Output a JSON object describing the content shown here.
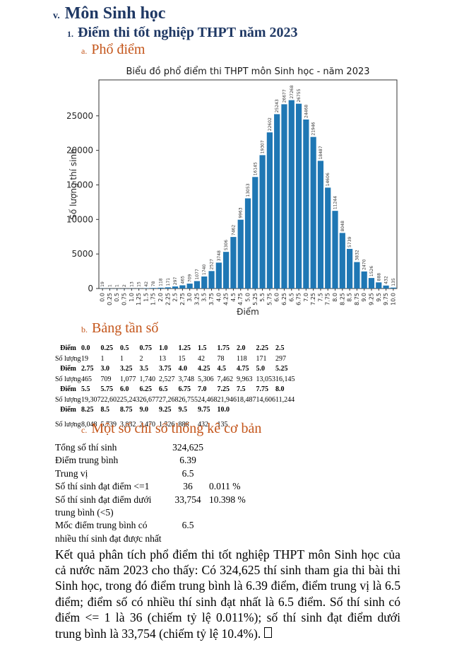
{
  "page": {
    "title_prefix": "v.",
    "title": "Môn Sinh học",
    "subtitle_prefix": "1.",
    "subtitle": "Điểm thi tốt nghiệp THPT năm 2023",
    "section_a_prefix": "a.",
    "section_a": "Phổ điểm",
    "section_b_prefix": "b.",
    "section_b": "Bảng tần số",
    "section_c_prefix": "c.",
    "section_c": "Một số chỉ số thống kê cơ bản"
  },
  "chart_data": {
    "type": "bar",
    "title": "Biểu đồ phổ điểm thi THPT môn Sinh học - năm 2023",
    "xlabel": "Điểm",
    "ylabel": "Số lượng thí sinh",
    "categories": [
      "0.0",
      "0.25",
      "0.5",
      "0.75",
      "1.0",
      "1.25",
      "1.5",
      "1.75",
      "2.0",
      "2.25",
      "2.5",
      "2.75",
      "3.0",
      "3.25",
      "3.5",
      "3.75",
      "4.0",
      "4.25",
      "4.5",
      "4.75",
      "5.0",
      "5.25",
      "5.5",
      "5.75",
      "6.0",
      "6.25",
      "6.5",
      "6.75",
      "7.0",
      "7.25",
      "7.5",
      "7.75",
      "8.0",
      "8.25",
      "8.5",
      "8.75",
      "9.0",
      "9.25",
      "9.5",
      "9.75",
      "10.0"
    ],
    "values": [
      19,
      1,
      1,
      2,
      13,
      15,
      42,
      78,
      118,
      171,
      297,
      465,
      709,
      1077,
      1740,
      2527,
      3748,
      5306,
      7462,
      9963,
      13053,
      16145,
      19307,
      22602,
      25243,
      26677,
      27268,
      26755,
      24468,
      21946,
      18487,
      14606,
      11244,
      8048,
      5739,
      3832,
      2470,
      1526,
      888,
      432,
      135
    ],
    "yticks": [
      0,
      5000,
      10000,
      15000,
      20000,
      25000
    ],
    "ylim": [
      0,
      30200
    ],
    "bar_color": "#1f77b4",
    "grid": false,
    "legend": "none",
    "value_labels_rotated": true
  },
  "freq_table": {
    "diem_label": "Điểm",
    "soluong_label": "Số lượng",
    "groups": [
      {
        "diem": [
          "0.0",
          "0.25",
          "0.5",
          "0.75",
          "1.0",
          "1.25",
          "1.5",
          "1.75",
          "2.0",
          "2.25",
          "2.5"
        ],
        "soluong": [
          "19",
          "1",
          "1",
          "2",
          "13",
          "15",
          "42",
          "78",
          "118",
          "171",
          "297"
        ]
      },
      {
        "diem": [
          "2.75",
          "3.0",
          "3.25",
          "3.5",
          "3.75",
          "4.0",
          "4.25",
          "4.5",
          "4.75",
          "5.0",
          "5.25"
        ],
        "soluong": [
          "465",
          "709",
          "1,077",
          "1,740",
          "2,527",
          "3,748",
          "5,306",
          "7,462",
          "9,963",
          "13,053",
          "16,145"
        ]
      },
      {
        "diem": [
          "5.5",
          "5.75",
          "6.0",
          "6.25",
          "6.5",
          "6.75",
          "7.0",
          "7.25",
          "7.5",
          "7.75",
          "8.0"
        ],
        "soluong": [
          "19,307",
          "22,602",
          "25,243",
          "26,677",
          "27,268",
          "26,755",
          "24,468",
          "21,946",
          "18,487",
          "14,606",
          "11,244"
        ]
      },
      {
        "diem": [
          "8.25",
          "8.5",
          "8.75",
          "9.0",
          "9.25",
          "9.5",
          "9.75",
          "10.0"
        ],
        "soluong": [
          "8,048",
          "5,739",
          "3,832",
          "2,470",
          "1,526",
          "888",
          "432",
          "135"
        ]
      }
    ]
  },
  "stats": {
    "rows": [
      {
        "label": "Tổng số thí sinh",
        "value": "324,625",
        "pct": ""
      },
      {
        "label": "Điểm trung bình",
        "value": "6.39",
        "pct": ""
      },
      {
        "label": "Trung vị",
        "value": "6.5",
        "pct": ""
      },
      {
        "label": "Số thí sinh đạt điểm <=1",
        "value": "36",
        "pct": "0.011 %"
      },
      {
        "label": "Số thí sinh đạt điểm dưới trung bình (<5)",
        "value": "33,754",
        "pct": "10.398 %"
      },
      {
        "label": "Mốc điểm trung bình có nhiều thí sinh đạt được nhất",
        "value": "6.5",
        "pct": ""
      }
    ]
  },
  "paragraph": {
    "text": "Kết quả phân tích phổ điểm thi tốt nghiệp THPT môn Sinh học của cả nước năm 2023 cho thấy: Có 324,625 thí sinh tham gia thi bài thi Sinh học, trong đó điểm trung bình là 6.39 điểm, điểm trung vị là 6.5 điểm; điểm số có nhiều thí sinh đạt nhất là 6.5 điểm. Số thí sinh có điểm <= 1 là 36 (chiếm tỷ lệ 0.011%); số thí sinh đạt điểm dưới trung bình là 33,754 (chiếm tỷ lệ 10.4%)."
  },
  "colors": {
    "heading_navy": "#1F3864",
    "heading_orange": "#C4551A",
    "bar_blue": "#1f77b4"
  }
}
